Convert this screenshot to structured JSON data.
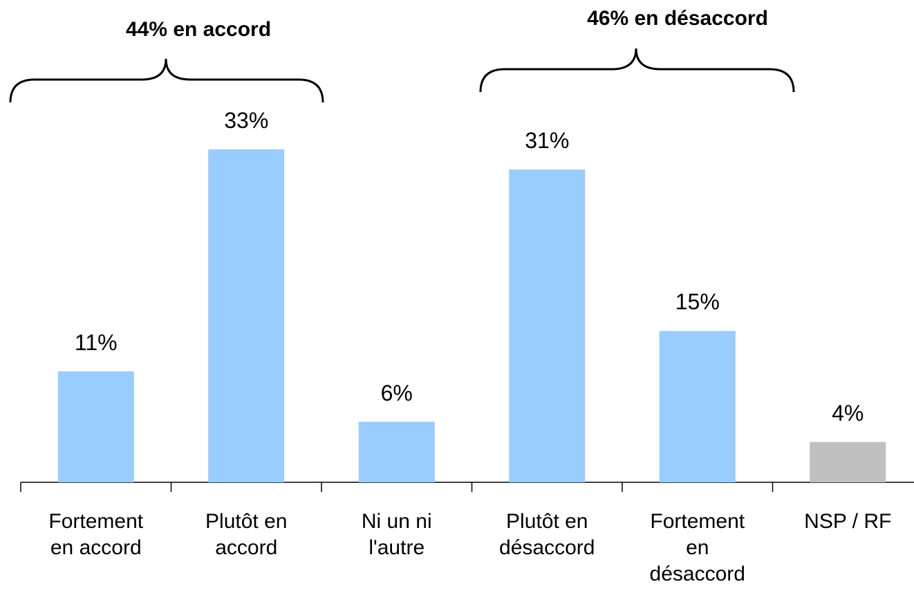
{
  "chart_data": {
    "type": "bar",
    "categories": [
      "Fortement en accord",
      "Plutôt en accord",
      "Ni un ni l'autre",
      "Plutôt en désaccord",
      "Fortement en désaccord",
      "NSP / RF"
    ],
    "values": [
      11,
      33,
      6,
      31,
      15,
      4
    ],
    "value_labels": [
      "11%",
      "33%",
      "6%",
      "31%",
      "15%",
      "4%"
    ],
    "colors": [
      "#99ccff",
      "#99ccff",
      "#99ccff",
      "#99ccff",
      "#99ccff",
      "#c0c0c0"
    ],
    "annotations": [
      "44% en accord",
      "46% en désaccord"
    ]
  }
}
